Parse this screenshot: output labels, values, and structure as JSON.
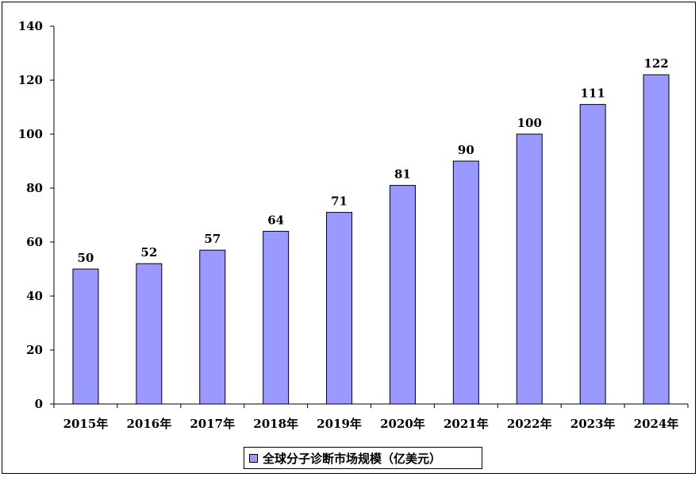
{
  "chart_data": {
    "type": "bar",
    "categories": [
      "2015年",
      "2016年",
      "2017年",
      "2018年",
      "2019年",
      "2020年",
      "2021年",
      "2022年",
      "2023年",
      "2024年"
    ],
    "series": [
      {
        "name": "全球分子诊断市场规模（亿美元）",
        "values": [
          50,
          52,
          57,
          64,
          71,
          81,
          90,
          100,
          111,
          122
        ]
      }
    ],
    "ylim": [
      0,
      140
    ],
    "yticks": [
      0,
      20,
      40,
      60,
      80,
      100,
      120,
      140
    ],
    "legend_position": "bottom",
    "grid": false,
    "bar_color": "#9999ff"
  }
}
